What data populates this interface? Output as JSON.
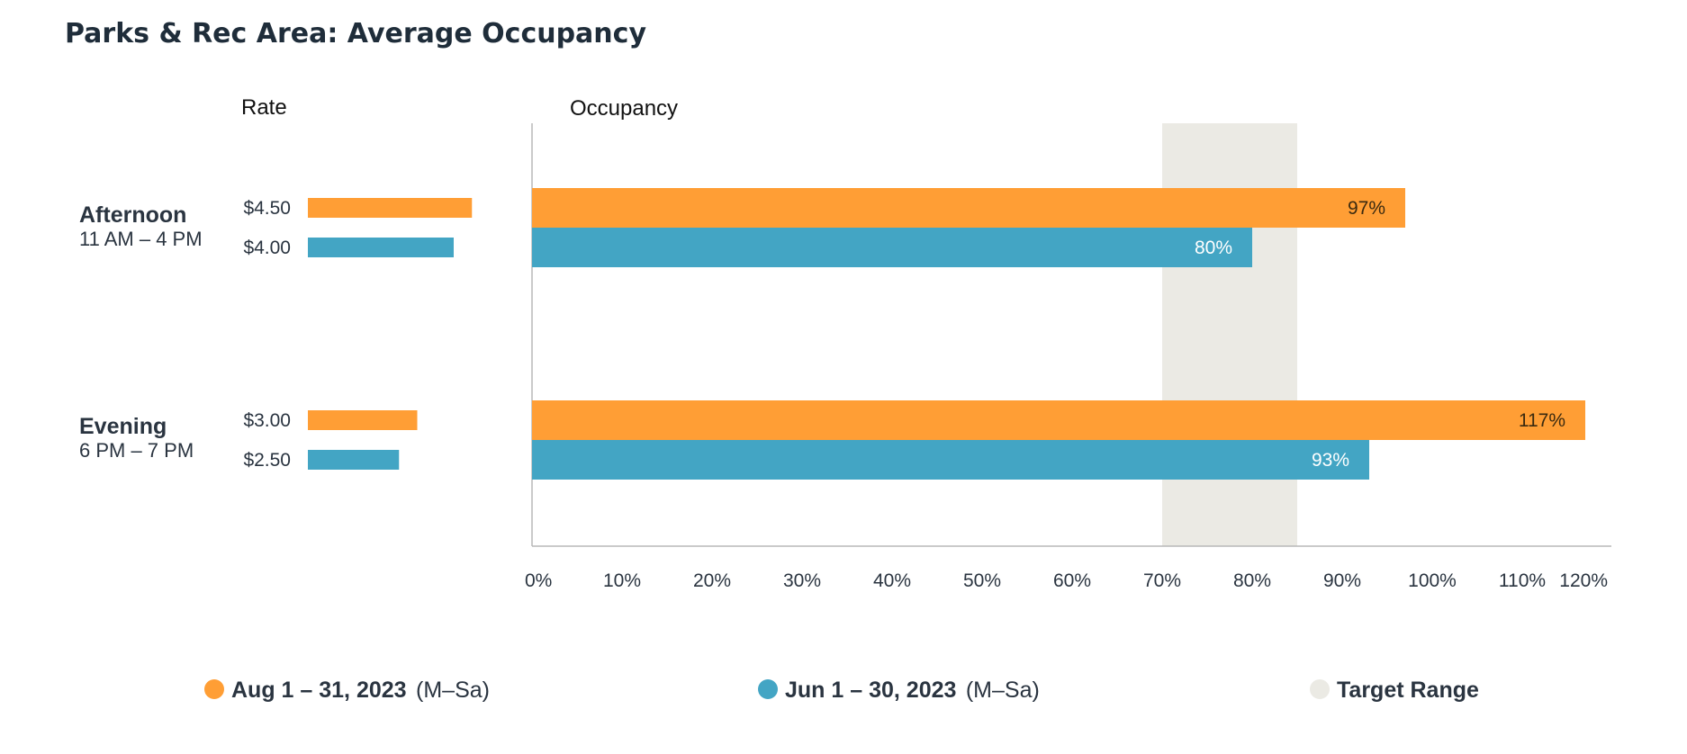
{
  "chart_data": {
    "type": "bar",
    "title": "Parks & Rec Area: Average Occupancy",
    "rate_header": "Rate",
    "occupancy_header": "Occupancy",
    "groups": [
      {
        "name": "Afternoon",
        "time": "11 AM – 4 PM"
      },
      {
        "name": "Evening",
        "time": "6 PM – 7 PM"
      }
    ],
    "series": [
      {
        "name_strong": "Aug 1 – 31, 2023",
        "name_light": "(M–Sa)",
        "color": "#ff9e35",
        "label_color": "#3a2a10",
        "rates": [
          4.5,
          3.0
        ],
        "rate_labels": [
          "$4.50",
          "$3.00"
        ],
        "occupancy": [
          97,
          117
        ],
        "occupancy_labels": [
          "97%",
          "117%"
        ]
      },
      {
        "name_strong": "Jun 1 – 30, 2023",
        "name_light": "(M–Sa)",
        "color": "#43a5c4",
        "label_color": "#ffffff",
        "rates": [
          4.0,
          2.5
        ],
        "rate_labels": [
          "$4.00",
          "$2.50"
        ],
        "occupancy": [
          80,
          93
        ],
        "occupancy_labels": [
          "80%",
          "93%"
        ]
      }
    ],
    "target_range": {
      "label": "Target Range",
      "from": 70,
      "to": 85,
      "color": "#ebeae4"
    },
    "xlim": [
      0,
      120
    ],
    "x_ticks": [
      0,
      10,
      20,
      30,
      40,
      50,
      60,
      70,
      80,
      90,
      100,
      110,
      120
    ],
    "x_tick_labels": [
      "0%",
      "10%",
      "20%",
      "30%",
      "40%",
      "50%",
      "60%",
      "70%",
      "80%",
      "90%",
      "100%",
      "110%",
      "120%"
    ],
    "rate_scale_max": 4.5
  }
}
